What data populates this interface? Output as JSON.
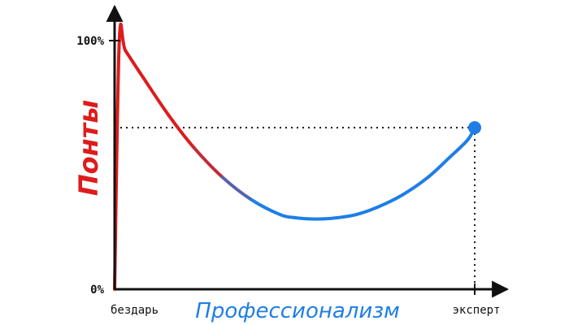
{
  "chart_data": {
    "type": "line",
    "title": "",
    "ylabel": "Понты",
    "xlabel": "Профессионализм",
    "ylim": [
      0,
      100
    ],
    "xlim": [
      0,
      100
    ],
    "y_ticks": [
      "0%",
      "100%"
    ],
    "x_categories": [
      {
        "label": "бездарь",
        "x": 0
      },
      {
        "label": "эксперт",
        "x": 100
      }
    ],
    "grid": false,
    "series": [
      {
        "x": [
          0,
          1.3,
          3,
          8,
          15,
          22,
          30,
          38,
          46,
          50,
          54,
          58,
          62,
          67,
          73,
          80,
          87,
          93,
          98,
          100
        ],
        "values": [
          0,
          100,
          96,
          85,
          70,
          57,
          45,
          36,
          30,
          28.8,
          28.3,
          28.3,
          28.8,
          30,
          33,
          38,
          45,
          53,
          60,
          65
        ],
        "color_start": "#dd1c1c",
        "color_end": "#1e7ee6"
      }
    ],
    "annotations": [
      {
        "type": "point",
        "x": 100,
        "y": 65,
        "color": "#1e7ee6"
      },
      {
        "type": "dotted-guides",
        "x": 100,
        "y": 65
      }
    ],
    "colors": {
      "ylabel": "#dd1c1c",
      "xlabel": "#1e7ee6",
      "axis": "#111111"
    }
  }
}
